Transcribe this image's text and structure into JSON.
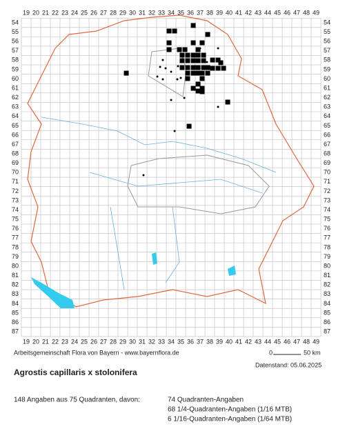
{
  "map": {
    "cols": [
      19,
      20,
      21,
      22,
      23,
      24,
      25,
      26,
      27,
      28,
      29,
      30,
      31,
      32,
      33,
      34,
      35,
      36,
      37,
      38,
      39,
      40,
      41,
      42,
      43,
      44,
      45,
      46,
      47,
      48,
      49
    ],
    "rows": [
      54,
      55,
      56,
      57,
      58,
      59,
      60,
      61,
      62,
      63,
      64,
      65,
      66,
      67,
      68,
      69,
      70,
      71,
      72,
      73,
      74,
      75,
      76,
      77,
      78,
      79,
      80,
      81,
      82,
      83,
      84,
      85,
      86,
      87
    ],
    "squares": [
      [
        33.79,
        54.88
      ],
      [
        34.36,
        54.88
      ],
      [
        36.29,
        54.29
      ],
      [
        33.79,
        56.14
      ],
      [
        37.79,
        55.25
      ],
      [
        33.79,
        56.87
      ],
      [
        34.86,
        56.87
      ],
      [
        35.43,
        56.87
      ],
      [
        36.29,
        56.14
      ],
      [
        37.21,
        56.14
      ],
      [
        36.79,
        56.87
      ],
      [
        35.71,
        57.46
      ],
      [
        35.14,
        57.46
      ],
      [
        36.29,
        57.46
      ],
      [
        36.79,
        57.46
      ],
      [
        37.36,
        57.46
      ],
      [
        38.29,
        57.98
      ],
      [
        38.86,
        57.98
      ],
      [
        35.14,
        58.05
      ],
      [
        35.71,
        58.05
      ],
      [
        36.29,
        58.05
      ],
      [
        36.79,
        58.05
      ],
      [
        37.36,
        58.05
      ],
      [
        37.79,
        58.79
      ],
      [
        38.29,
        58.86
      ],
      [
        38.86,
        58.86
      ],
      [
        39.43,
        58.86
      ],
      [
        35.14,
        58.79
      ],
      [
        35.71,
        58.79
      ],
      [
        36.29,
        58.79
      ],
      [
        36.79,
        58.79
      ],
      [
        37.36,
        58.79
      ],
      [
        35.71,
        59.38
      ],
      [
        36.29,
        59.38
      ],
      [
        36.79,
        59.38
      ],
      [
        35.71,
        59.96
      ],
      [
        37.21,
        59.96
      ],
      [
        36.79,
        60.55
      ],
      [
        36.29,
        61.0
      ],
      [
        37.21,
        61.0
      ],
      [
        36.79,
        61.29
      ],
      [
        37.21,
        61.36
      ],
      [
        39.14,
        58.27
      ],
      [
        29.36,
        59.38
      ],
      [
        39.86,
        62.47
      ],
      [
        35.86,
        65.05
      ],
      [
        37.21,
        59.38
      ],
      [
        37.79,
        59.38
      ]
    ],
    "dots": [
      [
        33.14,
        57.98
      ],
      [
        32.86,
        58.71
      ],
      [
        33.43,
        58.86
      ],
      [
        34.0,
        59.23
      ],
      [
        33.14,
        60.04
      ],
      [
        34.64,
        60.04
      ],
      [
        35.0,
        59.89
      ],
      [
        32.57,
        59.74
      ],
      [
        37.71,
        58.2
      ],
      [
        37.0,
        56.72
      ],
      [
        38.86,
        56.72
      ],
      [
        38.86,
        62.98
      ],
      [
        34.36,
        65.56
      ],
      [
        31.14,
        70.27
      ],
      [
        35.36,
        62.03
      ],
      [
        34.0,
        62.25
      ],
      [
        34.71,
        58.64
      ]
    ]
  },
  "footer": {
    "credit": "Arbeitsgemeinschaft Flora von Bayern - www.bayernflora.de",
    "scale_start": "0",
    "scale_end": "50 km",
    "date": "Datenstand: 05.06.2025"
  },
  "title": "Agrostis capillaris x stolonifera",
  "summary": "148 Angaben aus 75 Quadranten, davon:",
  "details": [
    "74 Quadranten-Angaben",
    "68 1/4-Quadranten-Angaben (1/16 MTB)",
    "6 1/16-Quadranten-Angaben (1/64 MTB)"
  ]
}
